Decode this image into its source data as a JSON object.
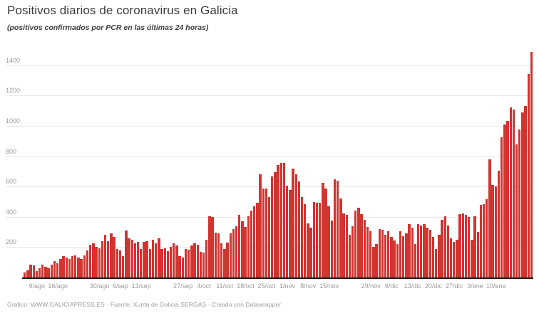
{
  "header": {
    "title": "Positivos diarios de coronavirus en Galicia",
    "subtitle": "(positivos confirmados por PCR en las últimas 24 horas)"
  },
  "footer": {
    "text": "Gráfico: WWW.GALICIAPRESS.ES · Fuente: Xunta de Galicia SERGAS · Creado con Datawrapper"
  },
  "colors": {
    "bar": "#d2342f",
    "grid": "#e8e8e8",
    "baseline": "#1d1d1d",
    "axis_label": "#9a9a9a",
    "title": "#3b3b3b",
    "footer": "#9b9b9b",
    "background": "#ffffff"
  },
  "chart_data": {
    "type": "bar",
    "title": "Positivos diarios de coronavirus en Galicia",
    "subtitle": "(positivos confirmados por PCR en las últimas 24 horas)",
    "xlabel": "",
    "ylabel": "",
    "ylim": [
      0,
      1530
    ],
    "yticks": [
      200,
      400,
      600,
      800,
      1000,
      1200,
      1400
    ],
    "grid": true,
    "legend": "none",
    "bar_color": "#d2342f",
    "months": [
      {
        "name": "ago",
        "from": 5,
        "to": 31
      },
      {
        "name": "sep",
        "from": 1,
        "to": 30
      },
      {
        "name": "oct",
        "from": 1,
        "to": 31
      },
      {
        "name": "nov",
        "from": 1,
        "to": 30
      },
      {
        "name": "dic",
        "from": 1,
        "to": 31
      },
      {
        "name": "ene",
        "from": 1,
        "to": 22
      }
    ],
    "x_tick_labels": [
      {
        "i": 4,
        "t": "9/ago"
      },
      {
        "i": 11,
        "t": "16/ago"
      },
      {
        "i": 25,
        "t": "30/ago"
      },
      {
        "i": 32,
        "t": "6/sep"
      },
      {
        "i": 39,
        "t": "13/sep"
      },
      {
        "i": 53,
        "t": "27/sep"
      },
      {
        "i": 60,
        "t": "4/oct"
      },
      {
        "i": 67,
        "t": "11/oct"
      },
      {
        "i": 74,
        "t": "18/oct"
      },
      {
        "i": 81,
        "t": "25/oct"
      },
      {
        "i": 88,
        "t": "1/nov"
      },
      {
        "i": 95,
        "t": "8/nov"
      },
      {
        "i": 102,
        "t": "15/nov"
      },
      {
        "i": 116,
        "t": "29/nov"
      },
      {
        "i": 123,
        "t": "6/dic"
      },
      {
        "i": 130,
        "t": "13/dic"
      },
      {
        "i": 137,
        "t": "20/dic"
      },
      {
        "i": 144,
        "t": "27/dic"
      },
      {
        "i": 151,
        "t": "3/ene"
      },
      {
        "i": 158,
        "t": "10/ene"
      }
    ],
    "values": [
      34,
      47,
      85,
      82,
      44,
      63,
      85,
      70,
      63,
      85,
      108,
      94,
      124,
      140,
      132,
      124,
      140,
      148,
      132,
      124,
      148,
      179,
      218,
      226,
      203,
      195,
      240,
      281,
      242,
      290,
      266,
      188,
      180,
      141,
      312,
      257,
      250,
      227,
      234,
      188,
      234,
      242,
      188,
      250,
      227,
      257,
      188,
      195,
      172,
      203,
      227,
      211,
      141,
      133,
      187,
      181,
      210,
      226,
      218,
      171,
      164,
      250,
      405,
      398,
      297,
      289,
      226,
      187,
      230,
      290,
      320,
      340,
      412,
      373,
      335,
      405,
      440,
      471,
      494,
      681,
      588,
      588,
      533,
      665,
      694,
      741,
      757,
      757,
      608,
      577,
      718,
      679,
      632,
      530,
      484,
      359,
      327,
      499,
      491,
      491,
      624,
      585,
      468,
      374,
      647,
      640,
      522,
      421,
      413,
      280,
      340,
      440,
      460,
      420,
      380,
      335,
      305,
      204,
      219,
      320,
      313,
      281,
      305,
      266,
      243,
      219,
      305,
      273,
      289,
      351,
      327,
      219,
      351,
      343,
      351,
      327,
      313,
      266,
      188,
      281,
      382,
      405,
      343,
      257,
      234,
      250,
      420,
      424,
      412,
      400,
      250,
      404,
      300,
      481,
      483,
      519,
      780,
      610,
      600,
      705,
      925,
      1010,
      1035,
      1120,
      1110,
      880,
      975,
      1090,
      1130,
      1345,
      1489
    ]
  }
}
